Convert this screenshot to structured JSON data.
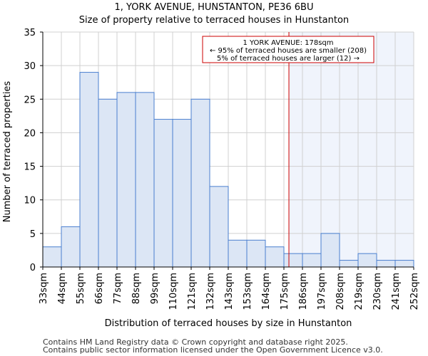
{
  "chart_data": {
    "type": "bar",
    "title": "1, YORK AVENUE, HUNSTANTON, PE36 6BU",
    "subtitle": "Size of property relative to terraced houses in Hunstanton",
    "xlabel": "Distribution of terraced houses by size in Hunstanton",
    "ylabel": "Number of terraced properties",
    "ylim": [
      0,
      35
    ],
    "yticks": [
      0,
      5,
      10,
      15,
      20,
      25,
      30,
      35
    ],
    "xtick_labels": [
      "33sqm",
      "44sqm",
      "55sqm",
      "66sqm",
      "77sqm",
      "88sqm",
      "99sqm",
      "110sqm",
      "121sqm",
      "132sqm",
      "143sqm",
      "153sqm",
      "164sqm",
      "175sqm",
      "186sqm",
      "197sqm",
      "208sqm",
      "219sqm",
      "230sqm",
      "241sqm",
      "252sqm"
    ],
    "values": [
      3,
      6,
      29,
      25,
      26,
      26,
      22,
      22,
      25,
      12,
      4,
      4,
      3,
      2,
      2,
      5,
      1,
      2,
      1,
      1
    ],
    "grid": true,
    "marker": {
      "value_sqm": 178,
      "bin_position": 13.27
    },
    "annotation": [
      "1 YORK AVENUE: 178sqm",
      "← 95% of terraced houses are smaller (208)",
      "5% of terraced houses are larger (12) →"
    ],
    "colors": {
      "bar": "#dce6f5",
      "bar_edge": "#4a7fcf",
      "marker": "#cc0000",
      "highlight": "#f0f4fc"
    }
  },
  "footer": [
    "Contains HM Land Registry data © Crown copyright and database right 2025.",
    "Contains public sector information licensed under the Open Government Licence v3.0."
  ]
}
